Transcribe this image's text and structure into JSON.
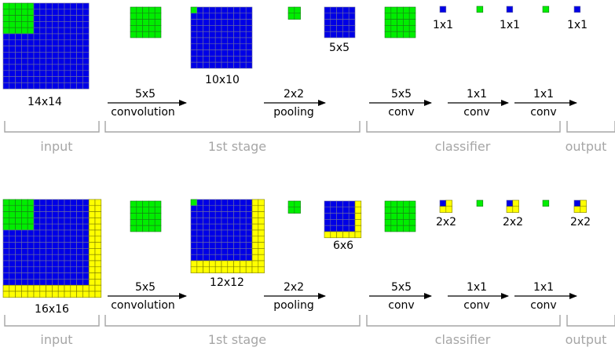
{
  "colors": {
    "blue": "#0000e6",
    "green": "#00ee00",
    "yellow": "#ffff00",
    "gridline": "#6f6f9f",
    "arrow": "#000000",
    "bracket": "#a6a6a6"
  },
  "rows": [
    {
      "input_size": "14x14",
      "conv1": {
        "kernel": "5x5",
        "name": "convolution"
      },
      "conv1_out": "10x10",
      "pool": {
        "kernel": "2x2",
        "name": "pooling"
      },
      "pool_out": "5x5",
      "cls_conv1": {
        "kernel": "5x5",
        "name": "conv"
      },
      "cls_conv2": {
        "kernel": "1x1",
        "name": "conv"
      },
      "cls_conv3": {
        "kernel": "1x1",
        "name": "conv"
      },
      "out_labels": [
        "1x1",
        "1x1",
        "1x1"
      ],
      "stages": {
        "input": "input",
        "first": "1st stage",
        "classifier": "classifier",
        "output": "output"
      }
    },
    {
      "input_size": "16x16",
      "conv1": {
        "kernel": "5x5",
        "name": "convolution"
      },
      "conv1_out": "12x12",
      "pool": {
        "kernel": "2x2",
        "name": "pooling"
      },
      "pool_out": "6x6",
      "cls_conv1": {
        "kernel": "5x5",
        "name": "conv"
      },
      "cls_conv2": {
        "kernel": "1x1",
        "name": "conv"
      },
      "cls_conv3": {
        "kernel": "1x1",
        "name": "conv"
      },
      "out_labels": [
        "2x2",
        "2x2",
        "2x2"
      ],
      "stages": {
        "input": "input",
        "first": "1st stage",
        "classifier": "classifier",
        "output": "output"
      }
    }
  ]
}
